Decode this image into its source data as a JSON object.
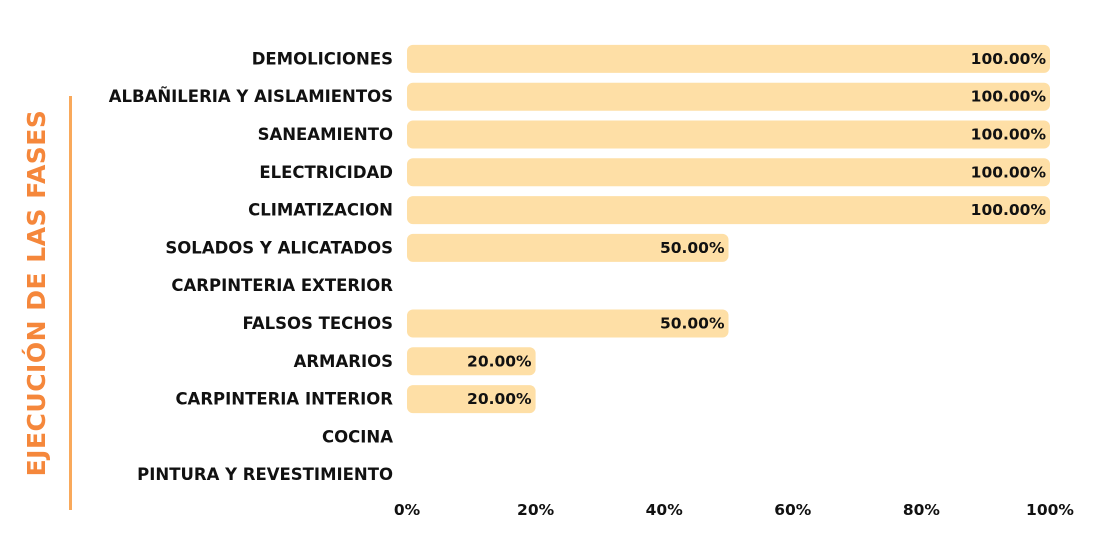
{
  "side_title": "EJECUCIÓN DE LAS FASES",
  "colors": {
    "bar": "#fedfa6",
    "title": "#f5873b",
    "title_line": "#f9a95b",
    "text": "#111111"
  },
  "chart_data": {
    "type": "bar",
    "orientation": "horizontal",
    "title": "EJECUCIÓN DE LAS FASES",
    "categories": [
      "DEMOLICIONES",
      "ALBAÑILERIA Y AISLAMIENTOS",
      "SANEAMIENTO",
      "ELECTRICIDAD",
      "CLIMATIZACION",
      "SOLADOS Y ALICATADOS",
      "CARPINTERIA EXTERIOR",
      "FALSOS TECHOS",
      "ARMARIOS",
      "CARPINTERIA INTERIOR",
      "COCINA",
      "PINTURA Y REVESTIMIENTO"
    ],
    "values": [
      100,
      100,
      100,
      100,
      100,
      50,
      0,
      50,
      20,
      20,
      0,
      0
    ],
    "value_labels": [
      "100.00%",
      "100.00%",
      "100.00%",
      "100.00%",
      "100.00%",
      "50.00%",
      "",
      "50.00%",
      "20.00%",
      "20.00%",
      "",
      ""
    ],
    "xlim": [
      0,
      100
    ],
    "xticks": [
      "0%",
      "20%",
      "40%",
      "60%",
      "80%",
      "100%"
    ],
    "grid": false,
    "legend": "none"
  }
}
